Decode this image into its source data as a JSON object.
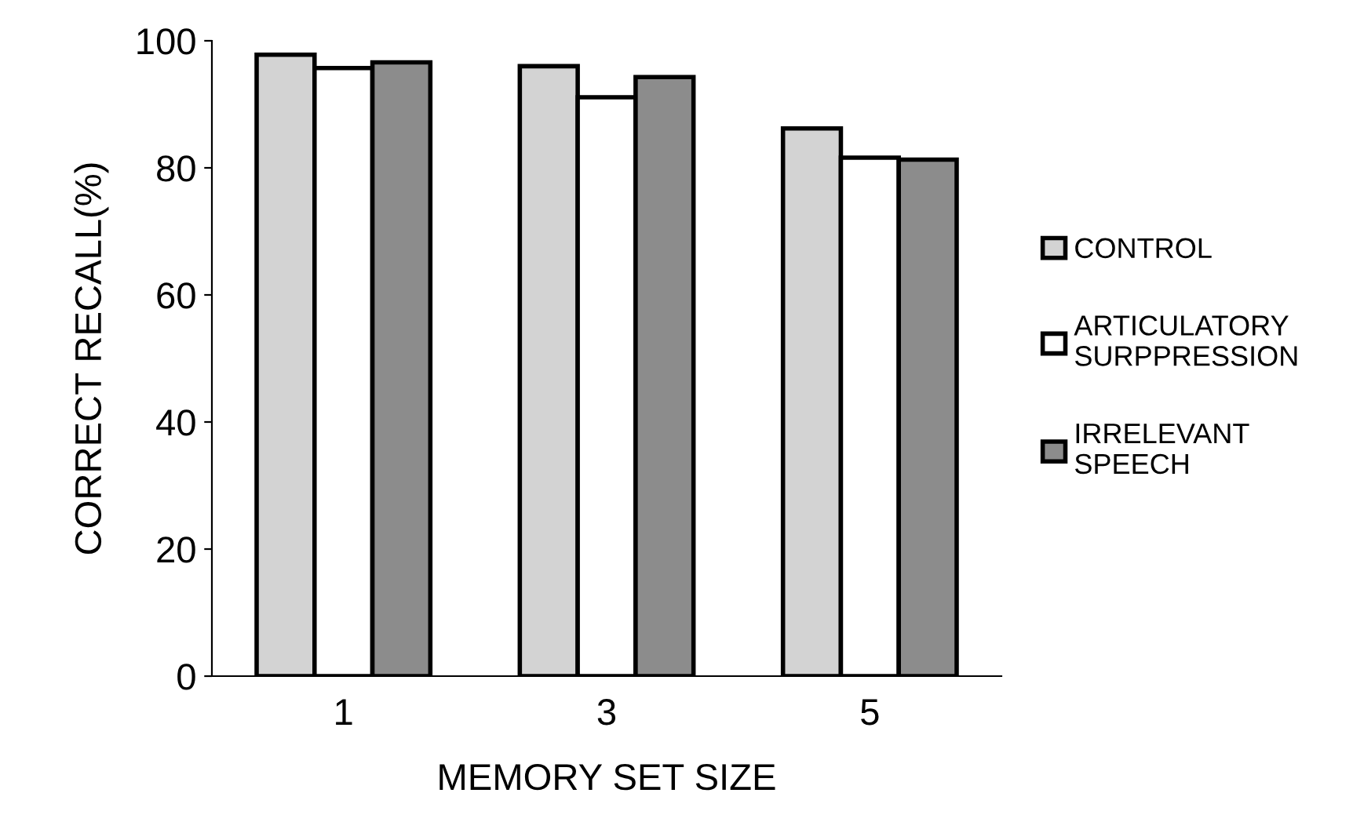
{
  "chart_data": {
    "type": "bar",
    "xlabel": "MEMORY SET SIZE",
    "ylabel": "CORRECT RECALL(%)",
    "categories": [
      "1",
      "3",
      "5"
    ],
    "series": [
      {
        "name": "CONTROL",
        "color": "#d3d3d3",
        "values": [
          97.8,
          96.0,
          86.2
        ]
      },
      {
        "name": "ARTICULATORY\nSURPPRESSION",
        "color": "#ffffff",
        "values": [
          95.7,
          91.1,
          81.6
        ]
      },
      {
        "name": "IRRELEVANT\nSPEECH",
        "color": "#8c8c8c",
        "values": [
          96.6,
          94.3,
          81.3
        ]
      }
    ],
    "ylim": [
      0,
      100
    ],
    "yticks": [
      0,
      20,
      40,
      60,
      80,
      100
    ],
    "grid": false,
    "legend": "right"
  }
}
